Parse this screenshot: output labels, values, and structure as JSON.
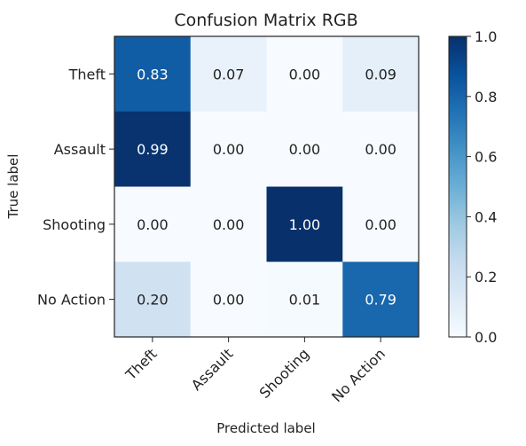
{
  "chart_data": {
    "type": "heatmap",
    "title": "Confusion Matrix RGB",
    "xlabel": "Predicted label",
    "ylabel": "True label",
    "x_categories": [
      "Theft",
      "Assault",
      "Shooting",
      "No Action"
    ],
    "y_categories": [
      "Theft",
      "Assault",
      "Shooting",
      "No Action"
    ],
    "values": [
      [
        0.83,
        0.07,
        0.0,
        0.09
      ],
      [
        0.99,
        0.0,
        0.0,
        0.0
      ],
      [
        0.0,
        0.0,
        1.0,
        0.0
      ],
      [
        0.2,
        0.0,
        0.01,
        0.79
      ]
    ],
    "cell_labels": [
      [
        "0.83",
        "0.07",
        "0.00",
        "0.09"
      ],
      [
        "0.99",
        "0.00",
        "0.00",
        "0.00"
      ],
      [
        "0.00",
        "0.00",
        "1.00",
        "0.00"
      ],
      [
        "0.20",
        "0.00",
        "0.01",
        "0.79"
      ]
    ],
    "colormap": "Blues",
    "vmin": 0.0,
    "vmax": 1.0,
    "colorbar_ticks": [
      "0.0",
      "0.2",
      "0.4",
      "0.6",
      "0.8",
      "1.0"
    ],
    "colorbar_tick_values": [
      0.0,
      0.2,
      0.4,
      0.6,
      0.8,
      1.0
    ],
    "x_tick_rotation_deg": 45
  }
}
